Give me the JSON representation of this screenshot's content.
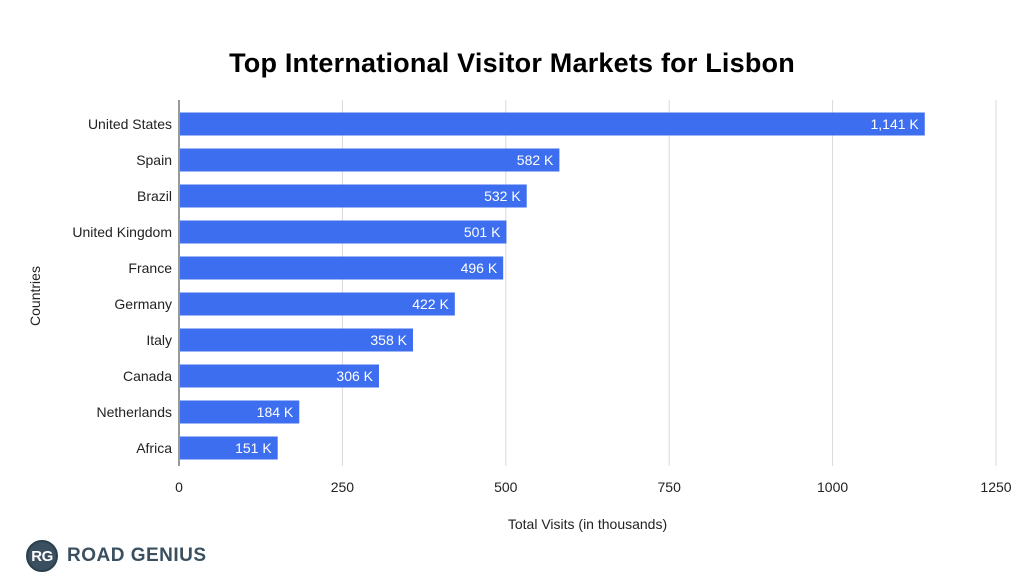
{
  "chart_data": {
    "type": "bar",
    "orientation": "horizontal",
    "title": "Top International Visitor Markets for Lisbon",
    "xlabel": "Total Visits (in thousands)",
    "ylabel": "Countries",
    "categories": [
      "United States",
      "Spain",
      "Brazil",
      "United Kingdom",
      "France",
      "Germany",
      "Italy",
      "Canada",
      "Netherlands",
      "Africa"
    ],
    "values": [
      1141,
      582,
      532,
      501,
      496,
      422,
      358,
      306,
      184,
      151
    ],
    "data_labels": [
      "1,141 K",
      "582 K",
      "532 K",
      "501 K",
      "496 K",
      "422 K",
      "358 K",
      "306 K",
      "184 K",
      "151 K"
    ],
    "xlim": [
      0,
      1250
    ],
    "xticks": [
      0,
      250,
      500,
      750,
      1000,
      1250
    ],
    "grid": "vertical",
    "bar_color": "#3d6ef0"
  },
  "brand": {
    "logo_initials": "RG",
    "logo_text": "ROAD GENIUS"
  }
}
